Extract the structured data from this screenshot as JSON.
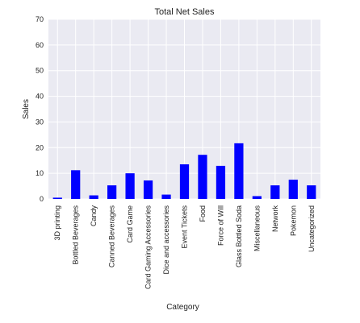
{
  "chart_data": {
    "type": "bar",
    "title": "Total Net Sales",
    "xlabel": "Category",
    "ylabel": "Sales",
    "ylim": [
      0,
      70
    ],
    "yticks": [
      0,
      10,
      20,
      30,
      40,
      50,
      60,
      70
    ],
    "grid": true,
    "bar_color": "#0000ff",
    "background_color": "#eaeaf2",
    "grid_color": "#ffffff",
    "categories": [
      "3D printing",
      "Bottled Beverages",
      "Candy",
      "Canned Beverages",
      "Card Game",
      "Card Gaming Accessories",
      "Dice and accessories",
      "Event Tickets",
      "Food",
      "Force of Will",
      "Glass Bottled Soda",
      "Miscellaneous",
      "Network",
      "Pokemon",
      "Uncategorized"
    ],
    "values": [
      0.5,
      11.2,
      1.4,
      5.3,
      10.0,
      7.2,
      1.7,
      13.5,
      17.2,
      12.9,
      21.7,
      1.1,
      5.3,
      7.5,
      5.3
    ]
  }
}
